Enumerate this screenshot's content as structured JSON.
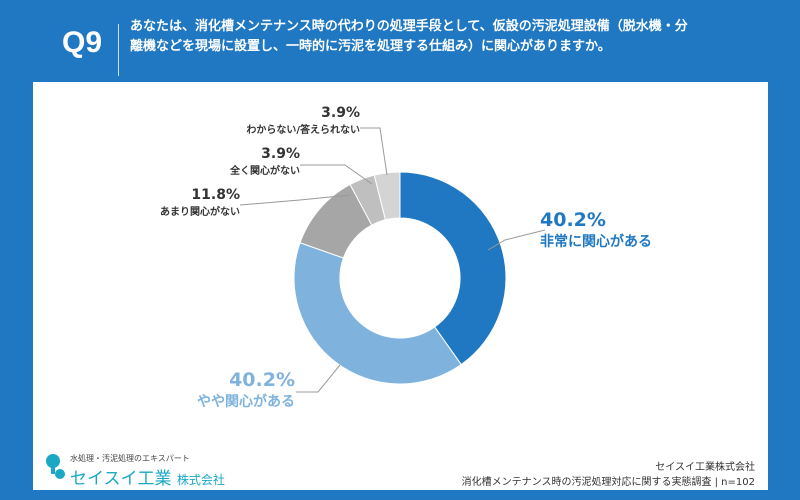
{
  "header": {
    "q_number": "Q9",
    "question": "あなたは、消化槽メンテナンス時の代わりの処理手段として、仮設の汚泥処理設備（脱水機・分離機などを現場に設置し、一時的に汚泥を処理する仕組み）に関心がありますか。"
  },
  "chart_data": {
    "type": "pie",
    "donut": true,
    "categories": [
      "非常に関心がある",
      "やや関心がある",
      "あまり関心がない",
      "全く関心がない",
      "わからない/答えられない"
    ],
    "values": [
      40.2,
      40.2,
      11.8,
      3.9,
      3.9
    ],
    "labels": [
      "40.2%",
      "40.2%",
      "11.8%",
      "3.9%",
      "3.9%"
    ],
    "colors": [
      "#1f78c1",
      "#7fb3dd",
      "#a6a6a6",
      "#bfbfbf",
      "#d4d4d4"
    ]
  },
  "footer": {
    "tagline": "水処理・汚泥処理のエキスパート",
    "brand": "セイスイ工業",
    "brand_suffix": "株式会社",
    "company": "セイスイ工業株式会社",
    "survey": "消化槽メンテナンス時の汚泥処理対応に関する実態調査 | n=102"
  }
}
